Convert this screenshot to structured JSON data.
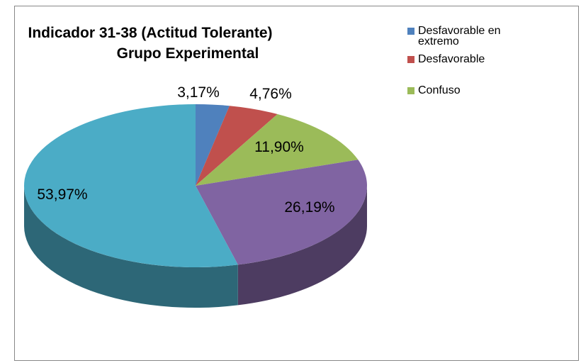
{
  "chart_data": {
    "type": "pie",
    "title": [
      "Indicador 31-38 (Actitud Tolerante)",
      "Grupo Experimental"
    ],
    "categories": [
      "Desfavorable en extremo",
      "Desfavorable",
      "Confuso",
      null,
      null
    ],
    "values": [
      3.17,
      4.76,
      11.9,
      26.19,
      53.97
    ],
    "value_labels": [
      "3,17%",
      "4,76%",
      "11,90%",
      "26,19%",
      "53,97%"
    ],
    "colors": [
      "#4f81bd",
      "#c0504d",
      "#9bbb59",
      "#8064a2",
      "#4bacc6"
    ],
    "legend": "right"
  }
}
